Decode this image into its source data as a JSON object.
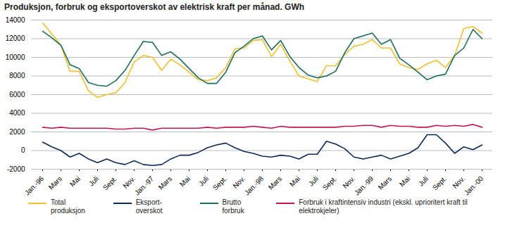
{
  "chart_data": {
    "type": "line",
    "title": "Produksjon, forbruk og eksportoverskot av elektrisk kraft per månad. GWh",
    "categories": [
      "Jan.-96",
      null,
      "Mars",
      null,
      "Mai",
      null,
      "Juli",
      null,
      "Sept.",
      null,
      "Nov.",
      null,
      "Jan.-97",
      null,
      "Mars",
      null,
      "Mai",
      null,
      "Juli",
      null,
      "Sept.",
      null,
      "Nov.",
      null,
      "Jan.-98",
      null,
      "Mars",
      null,
      "Mai",
      null,
      "Juli",
      null,
      "Sept.",
      null,
      "Nov.",
      null,
      "Jan.-99",
      null,
      "Mars",
      null,
      "Mai",
      null,
      "Juli",
      null,
      "Sept.",
      null,
      "Nov.",
      null,
      "Jan.-00"
    ],
    "series": [
      {
        "name": "Total produksjon",
        "color": "#f2bf2e",
        "values": [
          13700,
          12500,
          11300,
          8500,
          8500,
          6400,
          5700,
          6000,
          6200,
          7300,
          9500,
          10200,
          10000,
          8600,
          9800,
          9200,
          8400,
          7600,
          7500,
          7800,
          8900,
          10900,
          11000,
          11800,
          11900,
          10100,
          11400,
          9600,
          8000,
          7700,
          7400,
          9100,
          9100,
          10300,
          11200,
          11400,
          11900,
          11000,
          11000,
          9300,
          8900,
          8700,
          9300,
          9700,
          8900,
          10200,
          13100,
          13300,
          12600
        ]
      },
      {
        "name": "Eksport-overskot",
        "color": "#0b2a5a",
        "values": [
          900,
          400,
          0,
          -700,
          -300,
          -900,
          -1300,
          -900,
          -1300,
          -1500,
          -1100,
          -1500,
          -1600,
          -1500,
          -900,
          -500,
          -500,
          -200,
          300,
          600,
          800,
          300,
          -100,
          -300,
          -600,
          -700,
          -500,
          -600,
          -900,
          -400,
          -400,
          1000,
          700,
          200,
          -700,
          -900,
          -700,
          -500,
          -900,
          -600,
          -300,
          300,
          1700,
          1700,
          800,
          -300,
          400,
          100,
          600
        ]
      },
      {
        "name": "Brutto forbruk",
        "color": "#1b6e5e",
        "values": [
          12800,
          12100,
          11300,
          9200,
          8800,
          7300,
          7000,
          6900,
          7500,
          8600,
          10200,
          11700,
          11600,
          10200,
          10600,
          9800,
          8800,
          7800,
          7200,
          7200,
          8400,
          10500,
          11200,
          12000,
          12300,
          10800,
          11800,
          10100,
          8900,
          8100,
          7800,
          8000,
          8500,
          10500,
          12000,
          12300,
          12600,
          11400,
          11900,
          9900,
          9200,
          8400,
          7600,
          8000,
          8200,
          10200,
          11000,
          13000,
          12000
        ]
      },
      {
        "name": "Forbruk i kraftintensiv industri (ekskl. uprioritert kraft til elektrokjeler)",
        "color": "#c4164e",
        "values": [
          2500,
          2400,
          2500,
          2400,
          2400,
          2400,
          2400,
          2400,
          2300,
          2300,
          2400,
          2400,
          2200,
          2400,
          2400,
          2400,
          2400,
          2400,
          2500,
          2400,
          2500,
          2500,
          2500,
          2600,
          2500,
          2400,
          2600,
          2500,
          2500,
          2500,
          2500,
          2500,
          2500,
          2600,
          2600,
          2700,
          2700,
          2500,
          2700,
          2600,
          2600,
          2500,
          2500,
          2700,
          2600,
          2700,
          2600,
          2800,
          2500
        ]
      }
    ],
    "ylim": [
      -2000,
      14000
    ],
    "yticks": [
      -2000,
      0,
      2000,
      4000,
      6000,
      8000,
      10000,
      12000,
      14000
    ],
    "grid": true,
    "legend": "bottom"
  }
}
